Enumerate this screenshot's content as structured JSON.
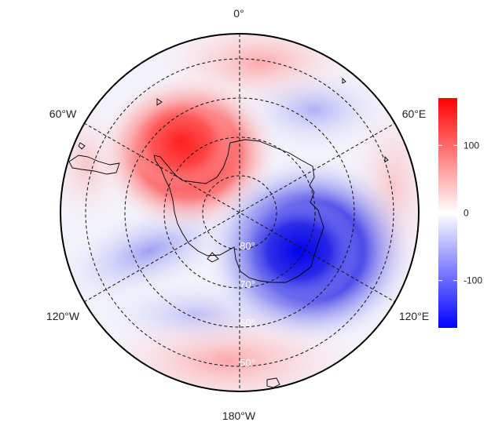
{
  "map": {
    "projection": "south-polar stereographic",
    "longitude_labels": {
      "top": "0°",
      "upper_left": "60°W",
      "upper_right": "60°E",
      "lower_left": "120°W",
      "lower_right": "120°E",
      "bottom": "180°W"
    },
    "latitude_labels": [
      "80°",
      "70°",
      "60°",
      "50°"
    ],
    "grid": "dashed",
    "colors": {
      "positive": "#ff0000",
      "zero": "#ffffff",
      "negative": "#0000ff"
    }
  },
  "legend": {
    "position": "right",
    "range": [
      -170,
      170
    ],
    "ticks": [
      "100",
      "0",
      "-100"
    ],
    "tick_values": [
      100,
      0,
      -100
    ]
  }
}
